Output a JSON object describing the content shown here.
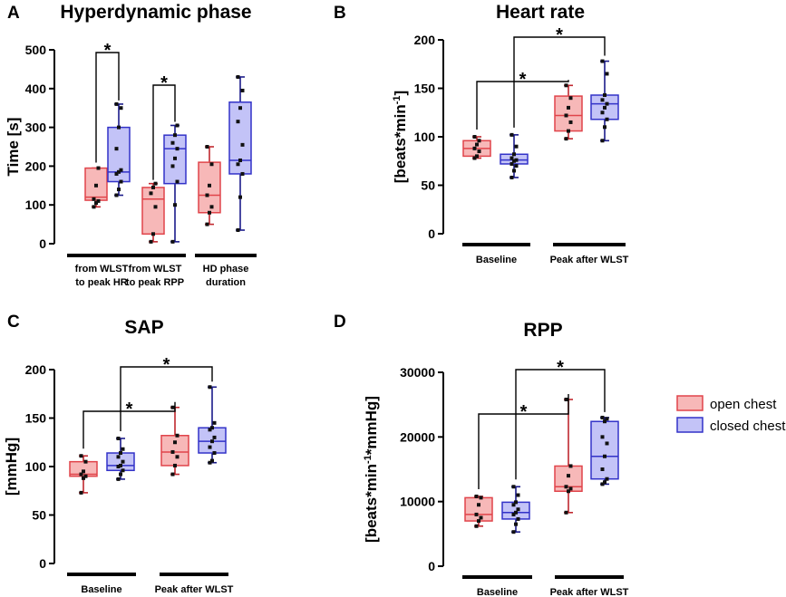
{
  "colors": {
    "open_fill": "#f7b8b8",
    "open_stroke": "#e0444a",
    "open_whisker": "#c0282f",
    "closed_fill": "#c3c3f7",
    "closed_stroke": "#3232c8",
    "closed_whisker": "#1b1b8a",
    "dot": "#111111",
    "axis": "#000000"
  },
  "legend": {
    "open": "open chest",
    "closed": "closed chest"
  },
  "chart_data": [
    {
      "id": "A",
      "panel_label": "A",
      "type": "box",
      "title": "Hyperdynamic phase",
      "ylabel": "Time [s]",
      "ylim": [
        0,
        500
      ],
      "yticks": [
        0,
        100,
        200,
        300,
        400,
        500
      ],
      "categories": [
        {
          "l1": "from WLST",
          "l2": "to peak HR"
        },
        {
          "l1": "from WLST",
          "l2": "to peak RPP"
        },
        {
          "l1": "HD phase",
          "l2": "duration"
        }
      ],
      "series": [
        {
          "name": "open chest",
          "stats": [
            [
              95,
              112,
              120,
              195,
              195
            ],
            [
              5,
              25,
              115,
              145,
              155
            ],
            [
              50,
              80,
              125,
              210,
              250
            ]
          ],
          "points": [
            [
              95,
              105,
              110,
              115,
              150,
              195
            ],
            [
              5,
              25,
              95,
              130,
              145,
              155
            ],
            [
              50,
              80,
              95,
              125,
              150,
              205,
              250
            ]
          ]
        },
        {
          "name": "closed chest",
          "stats": [
            [
              125,
              160,
              185,
              300,
              360
            ],
            [
              5,
              155,
              245,
              280,
              305
            ],
            [
              35,
              180,
              215,
              365,
              430
            ]
          ],
          "points": [
            [
              125,
              140,
              160,
              180,
              185,
              190,
              245,
              300,
              350,
              360
            ],
            [
              5,
              100,
              160,
              200,
              220,
              245,
              260,
              280,
              305
            ],
            [
              35,
              120,
              180,
              205,
              215,
              255,
              315,
              350,
              395,
              430
            ]
          ]
        }
      ],
      "brackets": [
        {
          "from": [
            0,
            0
          ],
          "to": [
            0,
            1
          ],
          "label": "*"
        },
        {
          "from": [
            1,
            0
          ],
          "to": [
            1,
            1
          ],
          "label": "*"
        }
      ]
    },
    {
      "id": "B",
      "panel_label": "B",
      "type": "box",
      "title": "Heart rate",
      "ylabel": "[beats*min-1]",
      "ylabel_main": "[beats*min",
      "ylabel_sup": "-1",
      "ylabel_end": "]",
      "ylim": [
        0,
        200
      ],
      "yticks": [
        0,
        50,
        100,
        150,
        200
      ],
      "categories": [
        {
          "l1": "Baseline",
          "l2": ""
        },
        {
          "l1": "Peak after WLST",
          "l2": ""
        }
      ],
      "series": [
        {
          "name": "open chest",
          "stats": [
            [
              78,
              80,
              88,
              96,
              100
            ],
            [
              98,
              106,
              122,
              142,
              153
            ]
          ],
          "points": [
            [
              78,
              80,
              85,
              88,
              92,
              96,
              100
            ],
            [
              98,
              106,
              115,
              122,
              130,
              140,
              153
            ]
          ]
        },
        {
          "name": "closed chest",
          "stats": [
            [
              58,
              72,
              76,
              82,
              102
            ],
            [
              96,
              118,
              134,
              143,
              178
            ]
          ],
          "points": [
            [
              58,
              65,
              70,
              72,
              75,
              76,
              78,
              82,
              90,
              102
            ],
            [
              96,
              110,
              118,
              125,
              130,
              134,
              138,
              143,
              165,
              178
            ]
          ]
        }
      ],
      "brackets": [
        {
          "from": [
            0,
            0
          ],
          "to": [
            1,
            0
          ],
          "label": "*"
        },
        {
          "from": [
            0,
            1
          ],
          "to": [
            1,
            1
          ],
          "label": "*"
        }
      ]
    },
    {
      "id": "C",
      "panel_label": "C",
      "type": "box",
      "title": "SAP",
      "ylabel": "[mmHg]",
      "ylim": [
        0,
        200
      ],
      "yticks": [
        0,
        50,
        100,
        150,
        200
      ],
      "categories": [
        {
          "l1": "Baseline",
          "l2": ""
        },
        {
          "l1": "Peak after WLST",
          "l2": ""
        }
      ],
      "series": [
        {
          "name": "open chest",
          "stats": [
            [
              73,
              90,
              92,
              105,
              111
            ],
            [
              92,
              101,
              115,
              132,
              161
            ]
          ],
          "points": [
            [
              73,
              88,
              90,
              92,
              95,
              105,
              111
            ],
            [
              92,
              101,
              110,
              115,
              125,
              132,
              161
            ]
          ]
        },
        {
          "name": "closed chest",
          "stats": [
            [
              87,
              96,
              101,
              114,
              129
            ],
            [
              104,
              114,
              126,
              140,
              182
            ]
          ],
          "points": [
            [
              87,
              92,
              96,
              100,
              101,
              105,
              110,
              114,
              118,
              129
            ],
            [
              104,
              106,
              114,
              120,
              126,
              130,
              138,
              140,
              145,
              182
            ]
          ]
        }
      ],
      "brackets": [
        {
          "from": [
            0,
            0
          ],
          "to": [
            1,
            0
          ],
          "label": "*"
        },
        {
          "from": [
            0,
            1
          ],
          "to": [
            1,
            1
          ],
          "label": "*"
        }
      ]
    },
    {
      "id": "D",
      "panel_label": "D",
      "type": "box",
      "title": "RPP",
      "ylabel": "[beats*min-1*mmHg]",
      "ylabel_main": "[beats*min",
      "ylabel_sup": "-1",
      "ylabel_end": "*mmHg]",
      "ylim": [
        0,
        30000
      ],
      "yticks": [
        0,
        10000,
        20000,
        30000
      ],
      "categories": [
        {
          "l1": "Baseline",
          "l2": ""
        },
        {
          "l1": "Peak after WLST",
          "l2": ""
        }
      ],
      "series": [
        {
          "name": "open chest",
          "stats": [
            [
              6200,
              7000,
              8000,
              10600,
              10800
            ],
            [
              8300,
              11600,
              12300,
              15500,
              25800
            ]
          ],
          "points": [
            [
              6200,
              7000,
              7500,
              8000,
              9500,
              10600,
              10800
            ],
            [
              8300,
              11600,
              12000,
              12300,
              14000,
              15500,
              25800
            ]
          ]
        },
        {
          "name": "closed chest",
          "stats": [
            [
              5300,
              7300,
              8300,
              9900,
              12300
            ],
            [
              12700,
              13500,
              17000,
              22400,
              23000
            ]
          ],
          "points": [
            [
              5300,
              6500,
              7300,
              8000,
              8300,
              8800,
              9500,
              9900,
              11000,
              12300
            ],
            [
              12700,
              13000,
              13500,
              15000,
              17000,
              19000,
              20000,
              22400,
              22800,
              23000
            ]
          ]
        }
      ],
      "brackets": [
        {
          "from": [
            0,
            0
          ],
          "to": [
            1,
            0
          ],
          "label": "*"
        },
        {
          "from": [
            0,
            1
          ],
          "to": [
            1,
            1
          ],
          "label": "*"
        }
      ]
    }
  ]
}
